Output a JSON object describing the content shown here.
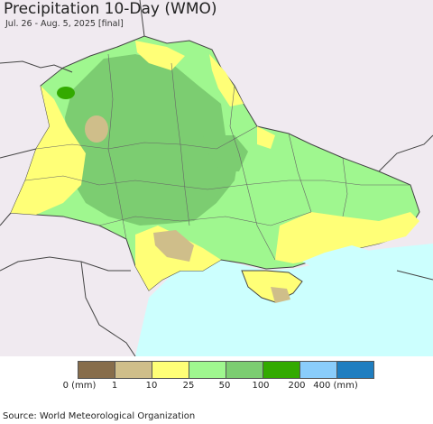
{
  "title": "Precipitation 10-Day (WMO)",
  "subtitle": "Jul. 26 - Aug. 5, 2025 [final]",
  "source": "Source: World Meteorological Organization",
  "legend": {
    "colors": [
      "#876d4b",
      "#cfbe8a",
      "#ffff77",
      "#9ff78f",
      "#7ccd71",
      "#33aa00",
      "#8acdfb",
      "#1f7ec0"
    ],
    "labels": [
      "0 (mm)",
      "1",
      "10",
      "25",
      "50",
      "100",
      "200",
      "400 (mm)"
    ]
  },
  "map_colors": {
    "sea": "#ccfffe",
    "outside_land": "#f0eaf0",
    "border": "#444444"
  }
}
